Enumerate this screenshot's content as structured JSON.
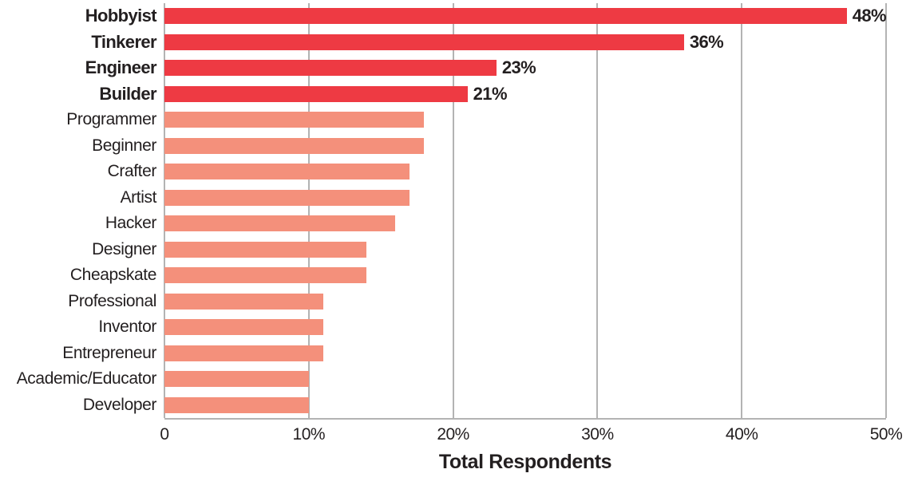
{
  "chart_data": {
    "type": "bar",
    "orientation": "horizontal",
    "title": "",
    "xlabel": "Total Respondents",
    "ylabel": "",
    "xlim": [
      0,
      50
    ],
    "grid": "vertical",
    "x_tick_values": [
      0,
      10,
      20,
      30,
      40,
      50
    ],
    "x_tick_labels": [
      "0",
      "10%",
      "20%",
      "30%",
      "40%",
      "50%"
    ],
    "categories": [
      "Hobbyist",
      "Tinkerer",
      "Engineer",
      "Builder",
      "Programmer",
      "Beginner",
      "Crafter",
      "Artist",
      "Hacker",
      "Designer",
      "Cheapskate",
      "Professional",
      "Inventor",
      "Entrepreneur",
      "Academic/Educator",
      "Developer"
    ],
    "values": [
      48,
      36,
      23,
      21,
      18,
      18,
      17,
      17,
      16,
      14,
      14,
      11,
      11,
      11,
      10,
      10
    ],
    "value_labels": [
      "48%",
      "36%",
      "23%",
      "21%",
      "",
      "",
      "",
      "",
      "",
      "",
      "",
      "",
      "",
      "",
      "",
      ""
    ],
    "emphasized": [
      true,
      true,
      true,
      true,
      false,
      false,
      false,
      false,
      false,
      false,
      false,
      false,
      false,
      false,
      false,
      false
    ],
    "colors": {
      "emphasis_bar": "#ee3a43",
      "normal_bar": "#f4907b",
      "gridline": "#b3b3b3",
      "text": "#231f20",
      "background": "#ffffff"
    }
  }
}
